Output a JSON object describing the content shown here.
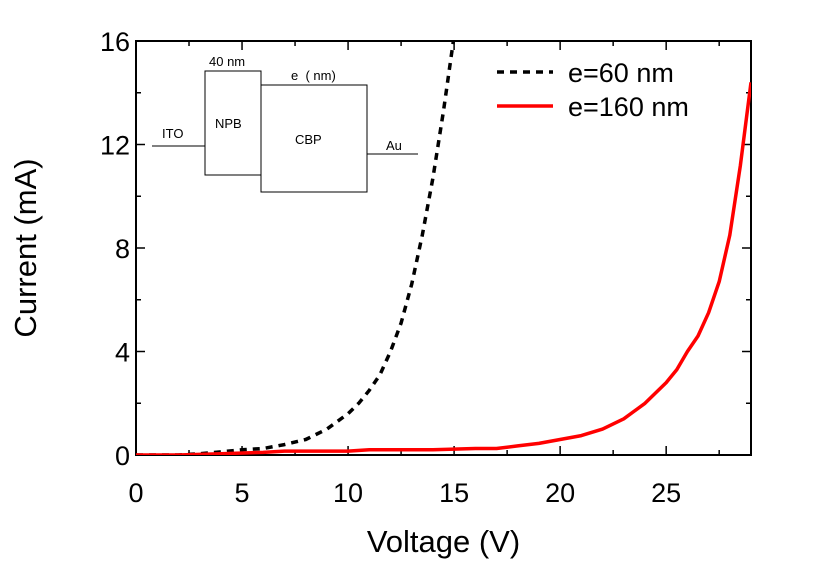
{
  "chart_data": {
    "type": "line",
    "xlabel": "Voltage (V)",
    "ylabel": "Current (mA)",
    "xlim": [
      0,
      29
    ],
    "ylim": [
      0,
      16
    ],
    "x_ticks": [
      "0",
      "5",
      "10",
      "15",
      "20",
      "25"
    ],
    "y_ticks": [
      "0",
      "4",
      "8",
      "12",
      "16"
    ],
    "grid": false,
    "legend_position": "top-right",
    "series": [
      {
        "name": "e=60 nm",
        "color": "#000000",
        "style": "dashed",
        "x": [
          0,
          1,
          2,
          3,
          4,
          5,
          6,
          7,
          8,
          9,
          10,
          10.5,
          11,
          11.5,
          12,
          12.5,
          13,
          13.5,
          14,
          14.5,
          15
        ],
        "y": [
          0,
          0,
          0,
          0.05,
          0.12,
          0.2,
          0.25,
          0.4,
          0.6,
          1.0,
          1.6,
          2.0,
          2.5,
          3.1,
          4.0,
          5.1,
          6.6,
          8.5,
          10.7,
          13.3,
          16.2
        ]
      },
      {
        "name": "e=160 nm",
        "color": "#ff0000",
        "style": "solid",
        "x": [
          0,
          2,
          4,
          6,
          7,
          8,
          10,
          11,
          12,
          14,
          16,
          17,
          18,
          19,
          20,
          21,
          22,
          23,
          24,
          25,
          25.5,
          26,
          26.5,
          27,
          27.5,
          28,
          28.5,
          29
        ],
        "y": [
          0,
          0,
          0.05,
          0.1,
          0.15,
          0.15,
          0.15,
          0.2,
          0.2,
          0.2,
          0.25,
          0.25,
          0.35,
          0.45,
          0.6,
          0.75,
          1.0,
          1.4,
          2.0,
          2.8,
          3.3,
          4.0,
          4.6,
          5.5,
          6.7,
          8.5,
          11.2,
          14.4
        ]
      }
    ],
    "inset": {
      "labels": {
        "thickness_npb": "40 nm",
        "thickness_cbp": "e  ( nm)",
        "anode": "ITO",
        "layer1": "NPB",
        "layer2": "CBP",
        "cathode": "Au"
      }
    }
  }
}
